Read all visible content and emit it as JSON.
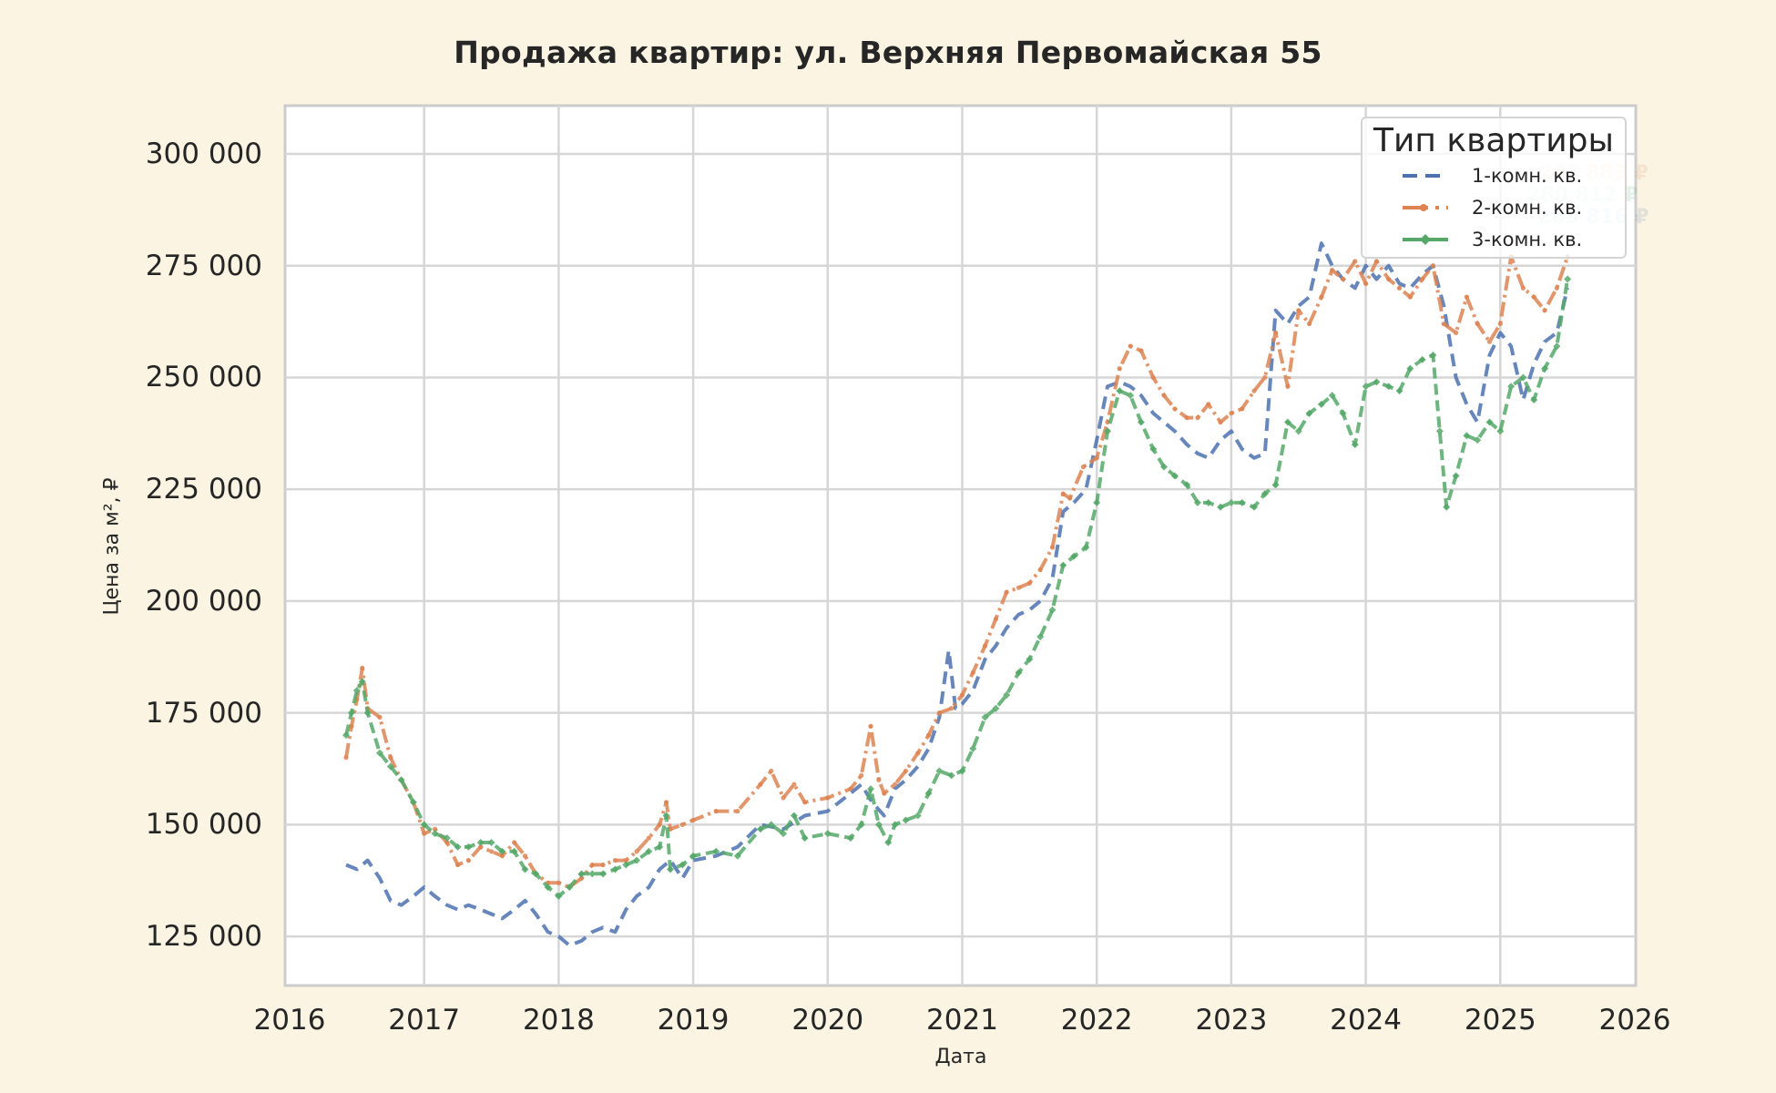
{
  "chart_data": {
    "type": "line",
    "title": "Продажа квартир: ул. Верхняя Первомайская 55",
    "xlabel": "Дата",
    "ylabel": "Цена за м², ₽",
    "xlim": [
      2016,
      2026
    ],
    "ylim": [
      114000,
      310000
    ],
    "x_ticks": [
      "2016",
      "2017",
      "2018",
      "2019",
      "2020",
      "2021",
      "2022",
      "2023",
      "2024",
      "2025",
      "2026"
    ],
    "y_ticks": [
      "125 000",
      "150 000",
      "175 000",
      "200 000",
      "225 000",
      "250 000",
      "275 000",
      "300 000"
    ],
    "y_tick_values": [
      125000,
      150000,
      175000,
      200000,
      225000,
      250000,
      275000,
      300000
    ],
    "grid": true,
    "legend": {
      "title": "Тип квартиры",
      "position": "upper right"
    },
    "colors": {
      "background": "#FBF4E2",
      "plot_bg": "#FFFFFF",
      "grid": "#D6D6D6",
      "spine": "#CCCCCC"
    },
    "annotations": [
      {
        "text": "28? 883 ₽",
        "series": "2-комн. кв.",
        "color": "#DD8452"
      },
      {
        "text": "280 812 ₽",
        "series": "3-комн. кв.",
        "color": "#55A868"
      },
      {
        "text": "283 816 ₽",
        "series": "1-комн. кв.",
        "color": "#4C72B0"
      }
    ],
    "series": [
      {
        "name": "1-комн. кв.",
        "color": "#4C72B0",
        "style": "dashed",
        "dash": "14,8",
        "x": [
          2016.42,
          2016.5,
          2016.58,
          2016.67,
          2016.75,
          2016.83,
          2016.92,
          2017.0,
          2017.08,
          2017.17,
          2017.25,
          2017.33,
          2017.42,
          2017.5,
          2017.58,
          2017.67,
          2017.75,
          2017.83,
          2017.92,
          2018.0,
          2018.08,
          2018.17,
          2018.25,
          2018.33,
          2018.42,
          2018.5,
          2018.58,
          2018.67,
          2018.75,
          2018.83,
          2018.92,
          2019.0,
          2019.17,
          2019.33,
          2019.5,
          2019.67,
          2019.83,
          2020.0,
          2020.17,
          2020.25,
          2020.33,
          2020.42,
          2020.5,
          2020.58,
          2020.67,
          2020.75,
          2020.83,
          2020.9,
          2020.95,
          2021.0,
          2021.08,
          2021.17,
          2021.25,
          2021.33,
          2021.42,
          2021.5,
          2021.58,
          2021.67,
          2021.75,
          2021.83,
          2021.92,
          2022.0,
          2022.08,
          2022.17,
          2022.25,
          2022.33,
          2022.42,
          2022.5,
          2022.58,
          2022.67,
          2022.75,
          2022.83,
          2022.92,
          2023.0,
          2023.08,
          2023.17,
          2023.25,
          2023.33,
          2023.42,
          2023.5,
          2023.58,
          2023.67,
          2023.75,
          2023.83,
          2023.92,
          2024.0,
          2024.08,
          2024.17,
          2024.25,
          2024.33,
          2024.42,
          2024.5,
          2024.58,
          2024.67,
          2024.75,
          2024.83,
          2024.92,
          2025.0,
          2025.08,
          2025.17,
          2025.25,
          2025.33,
          2025.42,
          2025.5
        ],
        "y": [
          141000,
          140000,
          142000,
          138000,
          133000,
          132000,
          134000,
          136000,
          134000,
          132000,
          131000,
          132000,
          131000,
          130000,
          129000,
          131000,
          133000,
          130000,
          126000,
          125000,
          123000,
          124000,
          126000,
          127000,
          126000,
          131000,
          134000,
          136000,
          140000,
          142000,
          138000,
          142000,
          143000,
          145000,
          150000,
          149000,
          152000,
          153000,
          157000,
          159000,
          155000,
          152000,
          158000,
          160000,
          163000,
          167000,
          174000,
          189000,
          176000,
          177000,
          180000,
          187000,
          190000,
          194000,
          197000,
          198000,
          200000,
          205000,
          220000,
          222000,
          225000,
          236000,
          248000,
          249000,
          248000,
          246000,
          242000,
          240000,
          238000,
          235000,
          233000,
          232000,
          236000,
          238000,
          234000,
          232000,
          233000,
          265000,
          262000,
          266000,
          268000,
          280000,
          275000,
          272000,
          270000,
          275000,
          272000,
          275000,
          271000,
          270000,
          273000,
          275000,
          266000,
          250000,
          244000,
          240000,
          255000,
          260000,
          257000,
          245000,
          253000,
          258000,
          260000,
          270000
        ]
      },
      {
        "name": "2-комн. кв.",
        "color": "#DD8452",
        "style": "dashdot",
        "dash": "16,5,3,5",
        "x": [
          2016.42,
          2016.46,
          2016.5,
          2016.54,
          2016.58,
          2016.67,
          2016.75,
          2016.83,
          2016.92,
          2017.0,
          2017.08,
          2017.17,
          2017.25,
          2017.33,
          2017.42,
          2017.5,
          2017.58,
          2017.67,
          2017.75,
          2017.83,
          2017.92,
          2018.0,
          2018.08,
          2018.17,
          2018.25,
          2018.33,
          2018.42,
          2018.5,
          2018.58,
          2018.67,
          2018.75,
          2018.8,
          2018.83,
          2018.92,
          2019.0,
          2019.17,
          2019.33,
          2019.5,
          2019.58,
          2019.67,
          2019.75,
          2019.83,
          2020.0,
          2020.17,
          2020.25,
          2020.32,
          2020.38,
          2020.42,
          2020.5,
          2020.58,
          2020.67,
          2020.75,
          2020.83,
          2020.92,
          2021.0,
          2021.08,
          2021.17,
          2021.25,
          2021.33,
          2021.42,
          2021.5,
          2021.58,
          2021.67,
          2021.75,
          2021.8,
          2021.9,
          2022.0,
          2022.08,
          2022.17,
          2022.25,
          2022.33,
          2022.42,
          2022.5,
          2022.58,
          2022.67,
          2022.75,
          2022.83,
          2022.92,
          2023.0,
          2023.08,
          2023.17,
          2023.25,
          2023.33,
          2023.42,
          2023.5,
          2023.58,
          2023.67,
          2023.75,
          2023.83,
          2023.92,
          2024.0,
          2024.08,
          2024.17,
          2024.25,
          2024.33,
          2024.42,
          2024.5,
          2024.58,
          2024.67,
          2024.75,
          2024.83,
          2024.92,
          2025.0,
          2025.08,
          2025.17,
          2025.25,
          2025.33,
          2025.42,
          2025.5
        ],
        "y": [
          165000,
          172000,
          178000,
          185000,
          176000,
          174000,
          165000,
          160000,
          155000,
          148000,
          149000,
          146000,
          141000,
          142000,
          145000,
          144000,
          143000,
          146000,
          143000,
          139000,
          137000,
          137000,
          136000,
          138000,
          141000,
          141000,
          142000,
          142000,
          144000,
          147000,
          150000,
          155000,
          149000,
          150000,
          151000,
          153000,
          153000,
          159000,
          162000,
          156000,
          159000,
          155000,
          156000,
          158000,
          161000,
          172000,
          160000,
          157000,
          159000,
          162000,
          166000,
          170000,
          175000,
          176000,
          179000,
          184000,
          190000,
          196000,
          202000,
          203000,
          204000,
          207000,
          212000,
          224000,
          223000,
          230000,
          232000,
          240000,
          252000,
          257000,
          256000,
          250000,
          246000,
          243000,
          241000,
          241000,
          244000,
          240000,
          242000,
          243000,
          247000,
          250000,
          260000,
          248000,
          265000,
          262000,
          268000,
          274000,
          272000,
          276000,
          271000,
          276000,
          272000,
          270000,
          268000,
          272000,
          275000,
          262000,
          260000,
          268000,
          262000,
          258000,
          262000,
          277000,
          270000,
          268000,
          265000,
          270000,
          277000
        ]
      },
      {
        "name": "3-комн. кв.",
        "color": "#55A868",
        "style": "dashed-diamond",
        "dash": "12,6",
        "x": [
          2016.42,
          2016.46,
          2016.5,
          2016.54,
          2016.58,
          2016.67,
          2016.75,
          2016.83,
          2016.92,
          2017.0,
          2017.08,
          2017.17,
          2017.25,
          2017.33,
          2017.42,
          2017.5,
          2017.58,
          2017.67,
          2017.75,
          2017.83,
          2017.92,
          2018.0,
          2018.08,
          2018.17,
          2018.25,
          2018.33,
          2018.42,
          2018.5,
          2018.58,
          2018.67,
          2018.75,
          2018.8,
          2018.83,
          2018.92,
          2019.0,
          2019.17,
          2019.33,
          2019.5,
          2019.58,
          2019.67,
          2019.75,
          2019.83,
          2020.0,
          2020.17,
          2020.25,
          2020.32,
          2020.38,
          2020.45,
          2020.5,
          2020.58,
          2020.67,
          2020.75,
          2020.83,
          2020.92,
          2021.0,
          2021.08,
          2021.17,
          2021.25,
          2021.33,
          2021.42,
          2021.5,
          2021.58,
          2021.67,
          2021.75,
          2021.83,
          2021.92,
          2022.0,
          2022.08,
          2022.17,
          2022.25,
          2022.33,
          2022.42,
          2022.5,
          2022.58,
          2022.67,
          2022.75,
          2022.83,
          2022.92,
          2023.0,
          2023.08,
          2023.17,
          2023.25,
          2023.33,
          2023.42,
          2023.5,
          2023.58,
          2023.67,
          2023.75,
          2023.83,
          2023.92,
          2024.0,
          2024.08,
          2024.17,
          2024.25,
          2024.33,
          2024.42,
          2024.5,
          2024.55,
          2024.6,
          2024.67,
          2024.75,
          2024.83,
          2024.92,
          2025.0,
          2025.08,
          2025.17,
          2025.25,
          2025.33,
          2025.42,
          2025.5
        ],
        "y": [
          170000,
          175000,
          180000,
          182000,
          175000,
          166000,
          163000,
          160000,
          155000,
          150000,
          148000,
          147000,
          145000,
          145000,
          146000,
          146000,
          144000,
          144000,
          140000,
          139000,
          136000,
          134000,
          136000,
          139000,
          139000,
          139000,
          140000,
          141000,
          142000,
          144000,
          145000,
          152000,
          140000,
          141000,
          143000,
          144000,
          143000,
          149000,
          150000,
          148000,
          152000,
          147000,
          148000,
          147000,
          150000,
          158000,
          150000,
          146000,
          150000,
          151000,
          152000,
          157000,
          162000,
          161000,
          162000,
          167000,
          174000,
          176000,
          179000,
          184000,
          187000,
          192000,
          198000,
          208000,
          210000,
          212000,
          222000,
          238000,
          247000,
          246000,
          240000,
          234000,
          230000,
          228000,
          226000,
          222000,
          222000,
          221000,
          222000,
          222000,
          221000,
          224000,
          226000,
          240000,
          238000,
          242000,
          244000,
          246000,
          242000,
          235000,
          248000,
          249000,
          248000,
          247000,
          252000,
          254000,
          255000,
          238000,
          221000,
          228000,
          237000,
          236000,
          240000,
          238000,
          248000,
          250000,
          245000,
          252000,
          257000,
          272000
        ]
      }
    ]
  }
}
